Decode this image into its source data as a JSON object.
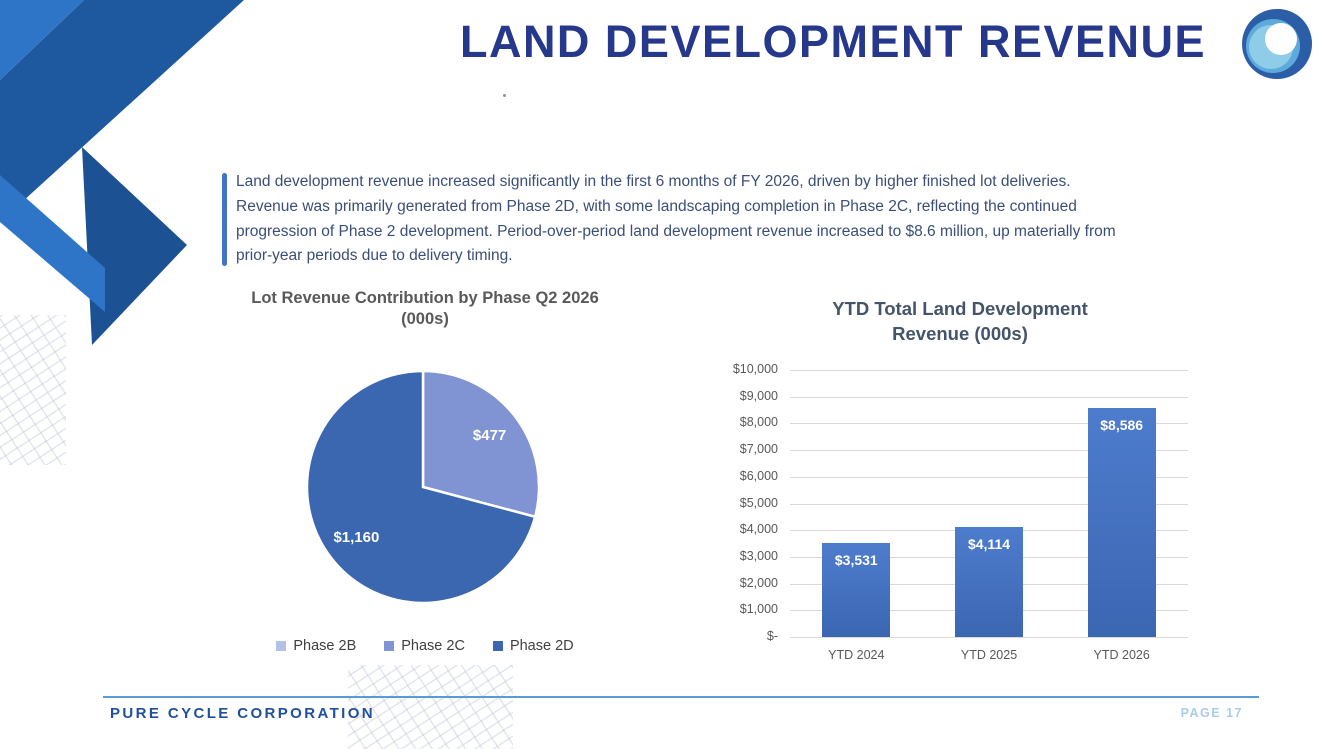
{
  "slide": {
    "title": "LAND DEVELOPMENT REVENUE"
  },
  "callout": {
    "lines": [
      "Land development revenue increased significantly in the first 6 months of FY 2026, driven by higher finished lot deliveries.",
      "Revenue was primarily generated from Phase 2D, with some landscaping completion in Phase 2C, reflecting the continued",
      "progression of Phase 2 development. Period-over-period land development revenue increased to $8.6 million, up materially from",
      "prior-year periods due to delivery timing."
    ],
    "accent_color": "#4472C4"
  },
  "footer": {
    "company": "PURE CYCLE CORPORATION",
    "page_label": "PAGE 17",
    "divider_color": "#5B9BD5"
  },
  "colors": {
    "title_navy": "#26388C",
    "corner_light_blue": "#2E75C8",
    "corner_dark_blue": "#1E59A0",
    "body_text": "#3A4E78"
  },
  "chart_data": [
    {
      "type": "pie",
      "title": "Lot Revenue Contribution by Phase Q2 2026 (000s)",
      "title_lines": [
        "Lot Revenue Contribution by Phase Q2 2026",
        "(000s)"
      ],
      "start_angle_deg_from_top_clockwise": 0,
      "slices": [
        {
          "label": "Phase 2B",
          "value": 0,
          "data_label": "",
          "color": "#B3C1E8"
        },
        {
          "label": "Phase 2C",
          "value": 477,
          "data_label": "$477",
          "color": "#8093D2"
        },
        {
          "label": "Phase 2D",
          "value": 1160,
          "data_label": "$1,160",
          "color": "#3B66B0"
        }
      ],
      "legend_position": "bottom",
      "data_label_color": "#FFFFFF"
    },
    {
      "type": "bar",
      "title": "YTD Total Land Development Revenue (000s)",
      "title_lines": [
        "YTD Total Land Development",
        "Revenue (000s)"
      ],
      "categories": [
        "YTD 2024",
        "YTD 2025",
        "YTD 2026"
      ],
      "values": [
        3531,
        4114,
        8586
      ],
      "data_labels": [
        "$3,531",
        "$4,114",
        "$8,586"
      ],
      "ylim": [
        0,
        10000
      ],
      "ytick_labels_top_down": [
        "$10,000",
        "$9,000",
        "$8,000",
        "$7,000",
        "$6,000",
        "$5,000",
        "$4,000",
        "$3,000",
        "$2,000",
        "$1,000",
        "$-"
      ],
      "grid": true,
      "bar_color": "#4472C4",
      "data_label_color": "#FFFFFF"
    }
  ]
}
